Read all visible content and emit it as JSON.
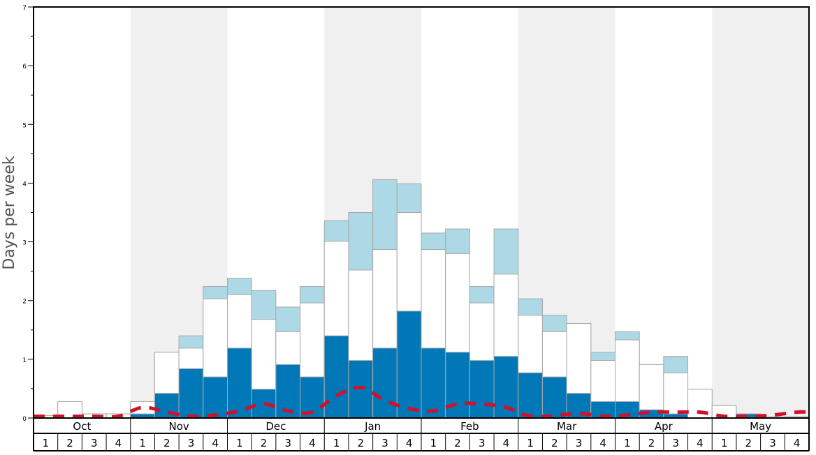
{
  "chart_data": {
    "type": "bar",
    "title": "",
    "ylabel": "Days per week",
    "xlabel": "",
    "ylim": [
      0,
      7
    ],
    "y_ticks": [
      "0",
      "1",
      "2",
      "3",
      "4",
      "5",
      "6",
      "7"
    ],
    "months": [
      "Oct",
      "Nov",
      "Dec",
      "Jan",
      "Feb",
      "Mar",
      "Apr",
      "May"
    ],
    "weeks": [
      "1",
      "2",
      "3",
      "4"
    ],
    "grid": false,
    "alternating_month_shading": true,
    "series": [
      {
        "values": [
          0,
          0,
          0,
          0,
          0.07,
          0.42,
          0.84,
          0.7,
          1.19,
          0.49,
          0.91,
          0.7,
          1.4,
          0.98,
          1.19,
          1.82,
          1.19,
          1.12,
          0.98,
          1.05,
          0.77,
          0.7,
          0.42,
          0.28,
          0.28,
          0.14,
          0.07,
          0,
          0,
          0.07,
          0,
          0
        ]
      },
      {
        "values": [
          0.04,
          0.28,
          0.07,
          0.07,
          0.28,
          1.12,
          1.19,
          2.03,
          2.1,
          1.68,
          1.47,
          1.96,
          3.01,
          2.52,
          2.87,
          3.5,
          2.87,
          2.8,
          1.96,
          2.45,
          1.75,
          1.47,
          1.61,
          0.98,
          1.33,
          0.91,
          0.77,
          0.49,
          0.21,
          0.07,
          0.02,
          0.02
        ]
      },
      {
        "values": [
          0.04,
          0.28,
          0.07,
          0.07,
          0.28,
          1.12,
          1.4,
          2.24,
          2.38,
          2.17,
          1.89,
          2.24,
          3.36,
          3.5,
          4.06,
          3.99,
          3.15,
          3.22,
          2.24,
          3.22,
          2.03,
          1.75,
          1.61,
          1.12,
          1.47,
          0.91,
          1.05,
          0.49,
          0.21,
          0.07,
          0.02,
          0.02
        ]
      },
      {
        "style": "dashed-line",
        "values": [
          0.03,
          0.03,
          0.03,
          0.03,
          0.18,
          0.1,
          0.03,
          0.05,
          0.12,
          0.24,
          0.12,
          0.1,
          0.38,
          0.52,
          0.3,
          0.16,
          0.12,
          0.24,
          0.24,
          0.18,
          0.03,
          0.04,
          0.08,
          0.03,
          0.05,
          0.1,
          0.1,
          0.1,
          0.03,
          0.03,
          0.05,
          0.1
        ]
      }
    ],
    "colors": {
      "dark_bar": "#0077b6",
      "light_bar": "#add8e6",
      "white_bar": "#ffffff",
      "bar_outline": "#a8a8a8",
      "dashed_line": "#d0112b",
      "shade": "#f0f0f0",
      "axis": "#000000",
      "ylabel": "#555555"
    }
  }
}
